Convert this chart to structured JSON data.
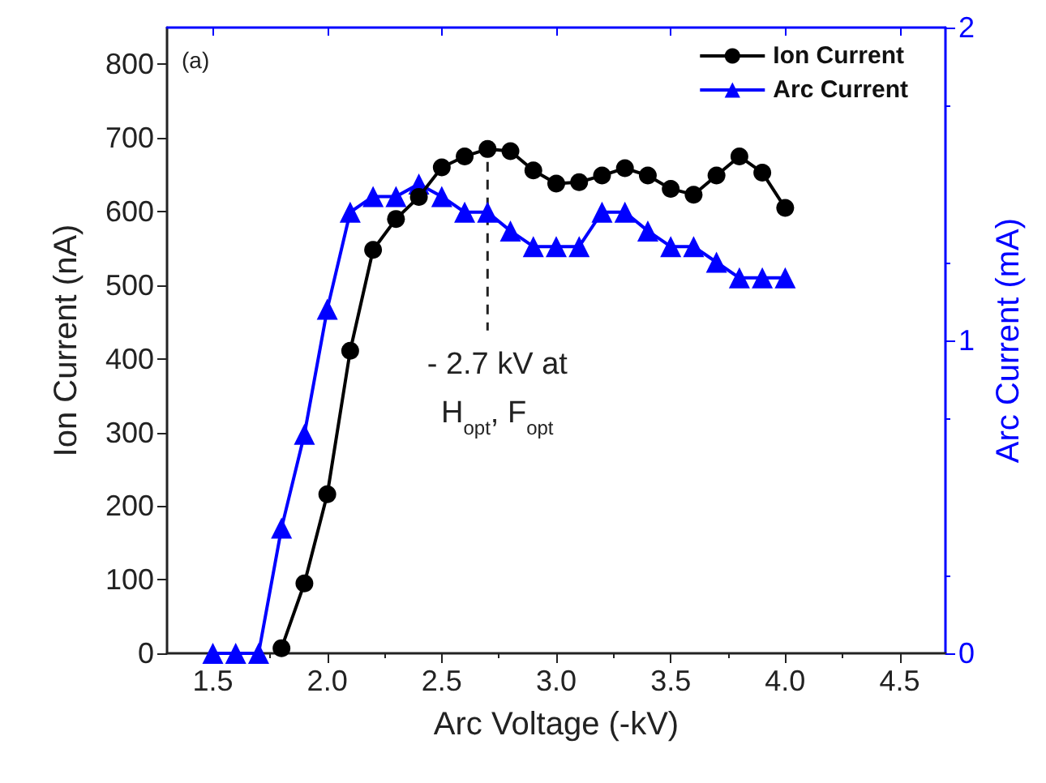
{
  "chart_data": {
    "type": "line",
    "xlabel": "Arc Voltage (-kV)",
    "ylabel": "Ion Current (nA)",
    "y2label": "Arc Current (mA)",
    "x": [
      1.5,
      1.6,
      1.7,
      1.8,
      1.9,
      2.0,
      2.1,
      2.2,
      2.3,
      2.4,
      2.5,
      2.6,
      2.7,
      2.8,
      2.9,
      3.0,
      3.1,
      3.2,
      3.3,
      3.4,
      3.5,
      3.6,
      3.7,
      3.8,
      3.9,
      4.0
    ],
    "series": [
      {
        "name": "Ion Current",
        "color": "#000000",
        "marker": "circle",
        "x": [
          1.8,
          1.9,
          2.0,
          2.1,
          2.2,
          2.3,
          2.4,
          2.5,
          2.6,
          2.7,
          2.8,
          2.9,
          3.0,
          3.1,
          3.2,
          3.3,
          3.4,
          3.5,
          3.6,
          3.7,
          3.8,
          3.9,
          4.0
        ],
        "values": [
          7,
          95,
          216,
          411,
          548,
          590,
          620,
          660,
          675,
          685,
          682,
          656,
          638,
          640,
          649,
          659,
          649,
          631,
          623,
          649,
          675,
          653,
          605
        ]
      },
      {
        "name": "Arc Current",
        "color": "#0000ff",
        "marker": "triangle",
        "axis": "y2",
        "values": [
          0,
          0,
          0,
          0.4,
          0.7,
          1.1,
          1.41,
          1.46,
          1.46,
          1.5,
          1.46,
          1.41,
          1.41,
          1.35,
          1.3,
          1.3,
          1.3,
          1.41,
          1.41,
          1.35,
          1.3,
          1.3,
          1.25,
          1.2,
          1.2,
          1.2
        ]
      }
    ],
    "xlim": [
      1.3,
      4.7
    ],
    "xticks": [
      1.5,
      {
        "value": 2,
        "label": "2.0"
      },
      2.5,
      {
        "value": 3,
        "label": "3.0"
      },
      3.5,
      {
        "value": 4,
        "label": "4.0"
      },
      4.5
    ],
    "ylim": [
      0,
      850
    ],
    "yticks": [
      0,
      100,
      200,
      300,
      400,
      500,
      600,
      700,
      800
    ],
    "y2lim": [
      0,
      2
    ],
    "y2ticks": [
      0,
      1,
      2
    ],
    "annotations": [
      "(a)",
      {
        "text": "- 2.7 kV at\nH$_{opt}$, F$_{opt}$",
        "x": 2.7,
        "y": 685
      }
    ],
    "legend": "top right",
    "grid": false,
    "line_style": "solid"
  }
}
